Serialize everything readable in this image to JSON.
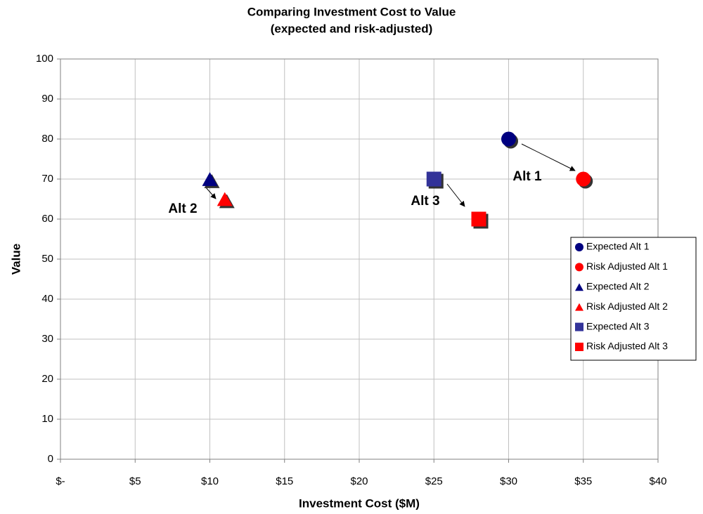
{
  "chart_data": {
    "type": "scatter",
    "title": "Comparing Investment Cost to Value",
    "subtitle": "(expected and risk-adjusted)",
    "x_label": "Investment Cost ($M)",
    "y_label": "Value",
    "xlim": [
      0,
      40
    ],
    "xticks": [
      {
        "value": 0,
        "label": "$-"
      },
      {
        "value": 5,
        "label": "$5"
      },
      {
        "value": 10,
        "label": "$10"
      },
      {
        "value": 15,
        "label": "$15"
      },
      {
        "value": 20,
        "label": "$20"
      },
      {
        "value": 25,
        "label": "$25"
      },
      {
        "value": 30,
        "label": "$30"
      },
      {
        "value": 35,
        "label": "$35"
      },
      {
        "value": 40,
        "label": "$40"
      }
    ],
    "ylim": [
      0,
      100
    ],
    "yticks": [
      0,
      10,
      20,
      30,
      40,
      50,
      60,
      70,
      80,
      90,
      100
    ],
    "grid": true,
    "legend": "right",
    "series": [
      {
        "name": "Expected Alt 1",
        "color": "#000080",
        "marker": "circle",
        "x": [
          30
        ],
        "values": [
          80
        ]
      },
      {
        "name": "Risk Adjusted Alt 1",
        "color": "#ff0000",
        "marker": "circle",
        "x": [
          35
        ],
        "values": [
          70
        ]
      },
      {
        "name": "Expected Alt 2",
        "color": "#000080",
        "marker": "triangle",
        "x": [
          10
        ],
        "values": [
          70
        ]
      },
      {
        "name": "Risk Adjusted Alt 2",
        "color": "#ff0000",
        "marker": "triangle",
        "x": [
          11
        ],
        "values": [
          65
        ]
      },
      {
        "name": "Expected Alt 3",
        "color": "#333399",
        "marker": "square",
        "x": [
          25
        ],
        "values": [
          70
        ]
      },
      {
        "name": "Risk Adjusted Alt 3",
        "color": "#ff0000",
        "marker": "square",
        "x": [
          28
        ],
        "values": [
          60
        ]
      }
    ],
    "annotations": [
      "Alt 1",
      "Alt 2",
      "Alt 3"
    ]
  }
}
